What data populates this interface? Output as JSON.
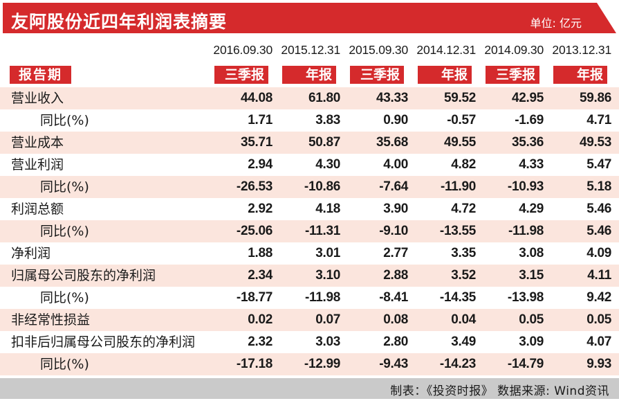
{
  "header": {
    "title": "友阿股份近四年利润表摘要",
    "unit": "单位: 亿元"
  },
  "period_label": "报告期",
  "columns": [
    {
      "date": "2016.09.30",
      "type": "三季报"
    },
    {
      "date": "2015.12.31",
      "type": "年报"
    },
    {
      "date": "2015.09.30",
      "type": "三季报"
    },
    {
      "date": "2014.12.31",
      "type": "年报"
    },
    {
      "date": "2014.09.30",
      "type": "三季报"
    },
    {
      "date": "2013.12.31",
      "type": "年报"
    }
  ],
  "rows": [
    {
      "label": "营业收入",
      "sub": false,
      "pink": true,
      "values": [
        "44.08",
        "61.80",
        "43.33",
        "59.52",
        "42.95",
        "59.86"
      ]
    },
    {
      "label": "同比(%)",
      "sub": true,
      "pink": false,
      "values": [
        "1.71",
        "3.83",
        "0.90",
        "-0.57",
        "-1.69",
        "4.71"
      ]
    },
    {
      "label": "营业成本",
      "sub": false,
      "pink": true,
      "values": [
        "35.71",
        "50.87",
        "35.68",
        "49.55",
        "35.36",
        "49.53"
      ]
    },
    {
      "label": "营业利润",
      "sub": false,
      "pink": false,
      "values": [
        "2.94",
        "4.30",
        "4.00",
        "4.82",
        "4.33",
        "5.47"
      ]
    },
    {
      "label": "同比(%)",
      "sub": true,
      "pink": true,
      "values": [
        "-26.53",
        "-10.86",
        "-7.64",
        "-11.90",
        "-10.93",
        "5.18"
      ]
    },
    {
      "label": "利润总额",
      "sub": false,
      "pink": false,
      "values": [
        "2.92",
        "4.18",
        "3.90",
        "4.72",
        "4.29",
        "5.46"
      ]
    },
    {
      "label": "同比(%)",
      "sub": true,
      "pink": true,
      "values": [
        "-25.06",
        "-11.31",
        "-9.10",
        "-13.55",
        "-11.98",
        "5.46"
      ]
    },
    {
      "label": "净利润",
      "sub": false,
      "pink": false,
      "values": [
        "1.88",
        "3.01",
        "2.77",
        "3.35",
        "3.08",
        "4.09"
      ]
    },
    {
      "label": "归属母公司股东的净利润",
      "sub": false,
      "pink": true,
      "values": [
        "2.34",
        "3.10",
        "2.88",
        "3.52",
        "3.15",
        "4.11"
      ]
    },
    {
      "label": "同比(%)",
      "sub": true,
      "pink": false,
      "values": [
        "-18.77",
        "-11.98",
        "-8.41",
        "-14.35",
        "-13.98",
        "9.42"
      ]
    },
    {
      "label": "非经常性损益",
      "sub": false,
      "pink": true,
      "values": [
        "0.02",
        "0.07",
        "0.08",
        "0.04",
        "0.05",
        "0.05"
      ]
    },
    {
      "label": "扣非后归属母公司股东的净利润",
      "sub": false,
      "pink": false,
      "values": [
        "2.32",
        "3.03",
        "2.80",
        "3.49",
        "3.09",
        "4.07"
      ]
    },
    {
      "label": "同比(%)",
      "sub": true,
      "pink": true,
      "values": [
        "-17.18",
        "-12.99",
        "-9.43",
        "-14.23",
        "-14.79",
        "9.93"
      ]
    }
  ],
  "footer": "制表：《投资时报》 数据来源: Wind资讯",
  "colors": {
    "accent": "#d52a2c",
    "row_highlight": "#fbe5dd",
    "footer_bg": "#cacaca"
  }
}
